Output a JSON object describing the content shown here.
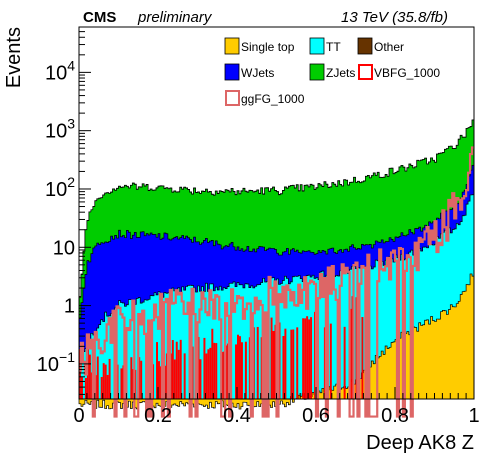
{
  "chart_data": {
    "type": "bar",
    "stacked": true,
    "histogram": true,
    "title": "",
    "header": {
      "experiment": "CMS",
      "status": "preliminary",
      "energy": "13 TeV (35.8/fb)"
    },
    "xlabel": "Deep AK8 Z",
    "ylabel": "Events",
    "xlim": [
      0,
      1
    ],
    "ylim": [
      0.025,
      60000
    ],
    "yscale": "log",
    "x_ticks": [
      {
        "value": 0,
        "label": "0"
      },
      {
        "value": 0.2,
        "label": "0.2"
      },
      {
        "value": 0.4,
        "label": "0.4"
      },
      {
        "value": 0.6,
        "label": "0.6"
      },
      {
        "value": 0.8,
        "label": "0.8"
      },
      {
        "value": 1,
        "label": "1"
      }
    ],
    "y_ticks": [
      {
        "value": 0.1,
        "base": "10",
        "exp": "−1",
        "label": ""
      },
      {
        "value": 1,
        "base": "",
        "exp": "",
        "label": "1"
      },
      {
        "value": 10,
        "base": "",
        "exp": "",
        "label": "10"
      },
      {
        "value": 100,
        "base": "10",
        "exp": "2",
        "label": ""
      },
      {
        "value": 1000,
        "base": "10",
        "exp": "3",
        "label": ""
      },
      {
        "value": 10000,
        "base": "10",
        "exp": "4",
        "label": ""
      }
    ],
    "legend_position": "top-right",
    "stack_order": [
      "Single top",
      "TT",
      "WJets",
      "ZJets",
      "Other"
    ],
    "series": [
      {
        "name": "Single top",
        "color": "#ffcc00",
        "kind": "stack-fill",
        "x": [
          0.0,
          0.05,
          0.1,
          0.2,
          0.3,
          0.4,
          0.5,
          0.6,
          0.7,
          0.75,
          0.8,
          0.85,
          0.9,
          0.95,
          0.98,
          1.0
        ],
        "values": [
          0.02,
          0.02,
          0.02,
          0.02,
          0.02,
          0.02,
          0.02,
          0.03,
          0.05,
          0.12,
          0.25,
          0.4,
          0.6,
          1.0,
          2.0,
          4.0
        ]
      },
      {
        "name": "TT",
        "color": "#00ffff",
        "kind": "stack-fill",
        "x": [
          0.0,
          0.02,
          0.05,
          0.1,
          0.2,
          0.3,
          0.4,
          0.5,
          0.6,
          0.7,
          0.8,
          0.85,
          0.9,
          0.95,
          0.98,
          1.0
        ],
        "values": [
          0.1,
          0.2,
          0.5,
          1.0,
          1.5,
          2.0,
          2.2,
          2.6,
          3.2,
          4.0,
          6.0,
          8.0,
          12.0,
          20.0,
          40.0,
          100.0
        ]
      },
      {
        "name": "WJets",
        "color": "#0000ff",
        "kind": "stack-fill",
        "x": [
          0.0,
          0.01,
          0.02,
          0.05,
          0.1,
          0.2,
          0.3,
          0.4,
          0.5,
          0.6,
          0.7,
          0.8,
          0.9,
          0.95,
          0.98,
          1.0
        ],
        "values": [
          0.3,
          1.5,
          5.0,
          12.0,
          16.0,
          14.0,
          11.0,
          8.0,
          6.0,
          5.0,
          5.5,
          8.0,
          15.0,
          28.0,
          60.0,
          180.0
        ]
      },
      {
        "name": "ZJets",
        "color": "#00cc00",
        "kind": "stack-fill",
        "x": [
          0.0,
          0.01,
          0.02,
          0.05,
          0.1,
          0.2,
          0.3,
          0.4,
          0.5,
          0.6,
          0.7,
          0.8,
          0.9,
          0.95,
          0.98,
          1.0
        ],
        "values": [
          0.5,
          4.0,
          25.0,
          65.0,
          95.0,
          90.0,
          80.0,
          80.0,
          85.0,
          100.0,
          130.0,
          190.0,
          300.0,
          500.0,
          800.0,
          1300.0
        ]
      },
      {
        "name": "Other",
        "color": "#663300",
        "kind": "stack-fill",
        "x": [
          0.0,
          0.05,
          0.1,
          0.2,
          0.4,
          0.6,
          0.8,
          0.9,
          0.95,
          1.0
        ],
        "values": [
          0.05,
          0.5,
          1.0,
          1.0,
          1.0,
          1.2,
          1.5,
          2.0,
          3.0,
          5.0
        ]
      },
      {
        "name": "VBFG_1000",
        "color": "#ff0000",
        "kind": "signal-bars",
        "x": [
          0.0,
          0.1,
          0.2,
          0.3,
          0.4,
          0.5,
          0.6,
          0.65,
          0.7,
          0.72
        ],
        "values": [
          0.1,
          0.1,
          0.15,
          0.2,
          0.3,
          0.35,
          0.5,
          0.7,
          0.9,
          0.8
        ]
      },
      {
        "name": "ggFG_1000",
        "color": "#dd6666",
        "kind": "outline",
        "x": [
          0.0,
          0.05,
          0.1,
          0.2,
          0.3,
          0.4,
          0.5,
          0.6,
          0.7,
          0.8,
          0.85,
          0.9,
          0.95,
          0.98,
          1.0
        ],
        "values": [
          0.1,
          0.3,
          0.5,
          0.8,
          1.0,
          1.2,
          1.5,
          2.0,
          3.0,
          5.0,
          8.0,
          15.0,
          40.0,
          150.0,
          700.0
        ]
      }
    ]
  }
}
